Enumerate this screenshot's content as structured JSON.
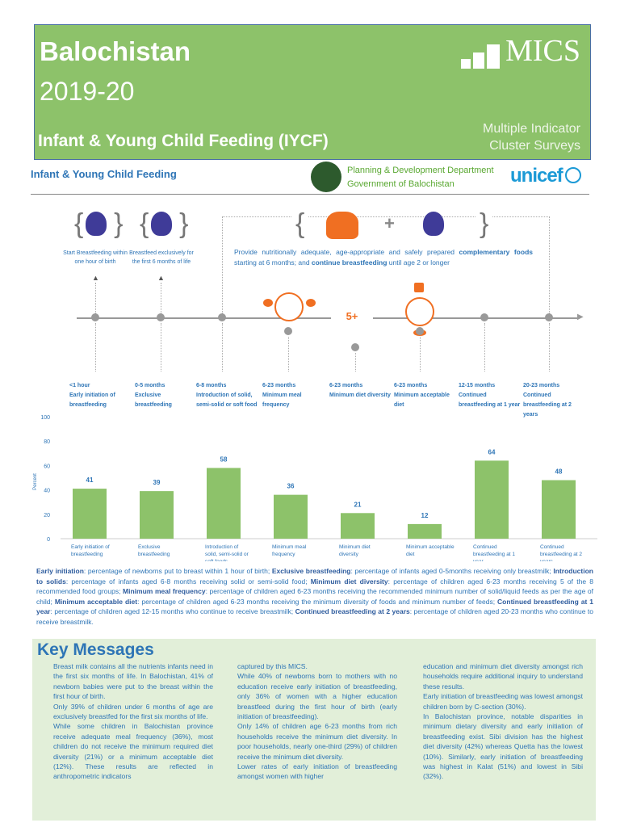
{
  "banner": {
    "region": "Balochistan",
    "year": "2019-20",
    "topic": "Infant & Young Child Feeding (IYCF)",
    "logo": "MICS",
    "logo_sub_1": "Multiple Indicator",
    "logo_sub_2": "Cluster Surveys",
    "color": "#8dc26a"
  },
  "subheader": {
    "title": "Infant & Young Child Feeding",
    "dept_1": "Planning & Development Department",
    "dept_2": "Government of Balochistan",
    "partner": "unicef"
  },
  "timeline": {
    "callouts": [
      {
        "text": "Start Breastfeeding within one hour of birth",
        "icon": "breastfeeding-mother-icon"
      },
      {
        "text": "Breastfeed exclusively for the first 6 months of life",
        "icon": "breastfeeding-mother-icon"
      }
    ],
    "intro_parts": [
      "Provide nutritionally adequate, age-appropriate and safely prepared ",
      "complementary foods",
      " starting at 6 months; and ",
      "continue breastfeeding",
      " until age 2 or longer"
    ],
    "plus": "+",
    "five_plus": "5+",
    "stages": [
      {
        "age": "<1 hour",
        "label": "Early initiation of breastfeeding"
      },
      {
        "age": "0-5 months",
        "label": "Exclusive breastfeeding"
      },
      {
        "age": "6-8 months",
        "label": "Introduction of solid, semi-solid or soft food"
      },
      {
        "age": "6-23 months",
        "label": "Minimum meal frequency"
      },
      {
        "age": "6-23 months",
        "label": "Minimum diet diversity"
      },
      {
        "age": "6-23 months",
        "label": "Minimum acceptable diet"
      },
      {
        "age": "12-15 months",
        "label": "Continued breastfeeding at 1 year"
      },
      {
        "age": "20-23 months",
        "label": "Continued breastfeeding at 2 years"
      }
    ]
  },
  "chart_data": {
    "type": "bar",
    "categories": [
      "Early initiation of breastfeeding",
      "Exclusive breastfeeding",
      "Introduction of solid, semi-solid or soft foods",
      "Minimum meal frequency",
      "Minimum diet diversity",
      "Minimum acceptable diet",
      "Continued breastfeeding at 1 year",
      "Continued breastfeeding at 2 years"
    ],
    "values": [
      41,
      39,
      58,
      36,
      21,
      12,
      64,
      48
    ],
    "ylabel": "Percent",
    "ylim": [
      0,
      100
    ],
    "yticks": [
      0,
      20,
      40,
      60,
      80,
      100
    ],
    "grid": false,
    "bar_color": "#8dc26a",
    "label_color": "#2e75b6"
  },
  "definitions": [
    {
      "term": "Early initiation",
      "text": ": percentage of newborns put to breast within 1 hour of birth; "
    },
    {
      "term": "Exclusive breastfeeding",
      "text": ": percentage of infants aged 0-5months receiving only breastmilk; "
    },
    {
      "term": "Introduction to solids",
      "text": ": percentage of infants aged 6-8 months receiving solid or semi-solid food; "
    },
    {
      "term": "Minimum diet diversity",
      "text": ": percentage of children aged 6-23 months receiving 5 of the 8 recommended food groups; "
    },
    {
      "term": "Minimum meal frequency",
      "text": ": percentage of children aged 6-23 months receiving the recommended minimum number of solid/liquid feeds as per the age of child; "
    },
    {
      "term": "Minimum acceptable diet",
      "text": ": percentage of children aged 6-23 months receiving the minimum diversity of foods and minimum number of feeds; "
    },
    {
      "term": "Continued breastfeeding at 1 year",
      "text": ": percentage of children aged 12-15 months who continue to receive breastmilk; "
    },
    {
      "term": "Continued breastfeeding at 2 years",
      "text": ": percentage of children aged 20-23 months who continue to receive breastmilk."
    }
  ],
  "key_messages": {
    "title": "Key Messages",
    "columns": [
      [
        "Breast milk contains all the nutrients infants need in the first six months of life. In Balochistan, 41% of newborn babies were put to the breast within the first hour of birth.",
        "Only 39% of children under 6 months of age are exclusively breastfed for the first six months of life.",
        "While some children in Balochistan province receive adequate meal frequency (36%), most children do not receive the minimum required diet diversity (21%) or a minimum acceptable diet (12%). These results are reflected in anthropometric indicators"
      ],
      [
        "captured by this MICS.",
        "While 40% of newborns born to mothers with no education receive early initiation of breastfeeding, only 36% of women with a higher education breastfeed during the first hour of birth (early initiation of breastfeeding).",
        "Only 14% of children age 6-23 months from rich households receive the minimum diet diversity.  In poor households, nearly one-third (29%) of children receive the minimum diet diversity.",
        "Lower rates of early initiation of breastfeeding amongst women with higher"
      ],
      [
        "education and minimum diet diversity amongst rich households require additional inquiry to understand these results.",
        "Early initiation of breastfeeding was lowest amongst children born by C-section (30%).",
        "In Balochistan province, notable disparities in minimum dietary diversity and early initiation of breastfeeding exist. Sibi division has the highest diet diversity (42%) whereas Quetta has the lowest (10%). Similarly, early initiation of breastfeeding was highest in Kalat (51%) and lowest in Sibi (32%)."
      ]
    ]
  }
}
